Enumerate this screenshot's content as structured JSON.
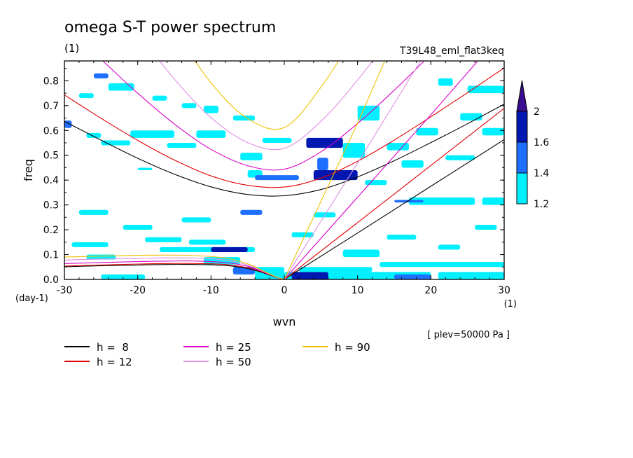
{
  "title": "omega S-T power spectrum",
  "subtitle": "(1)",
  "run_label": "T39L48_eml_flat3keq",
  "plev_label": "[ plev=50000 Pa ]",
  "chart_data": {
    "type": "heatmap",
    "xlabel": "wvn",
    "ylabel": "freq",
    "x_unit": "(1)",
    "y_unit": "(day-1)",
    "xlim": [
      -30,
      30
    ],
    "ylim": [
      0,
      0.88
    ],
    "x_ticks": [
      -30,
      -20,
      -10,
      0,
      10,
      20,
      30
    ],
    "x_tick_labels": [
      "-30",
      "-20",
      "-10",
      "0",
      "10",
      "20",
      "30"
    ],
    "y_ticks": [
      0,
      0.1,
      0.2,
      0.3,
      0.4,
      0.5,
      0.6,
      0.7,
      0.8
    ],
    "y_tick_labels": [
      "0.0",
      "0.1",
      "0.2",
      "0.3",
      "0.4",
      "0.5",
      "0.6",
      "0.7",
      "0.8"
    ],
    "colorbar": {
      "levels": [
        1.2,
        1.4,
        1.6,
        2
      ],
      "level_labels": [
        "1.2",
        "1.4",
        "1.6",
        "2"
      ],
      "colors": [
        "#00f0ff",
        "#1e6fff",
        "#0018b0",
        "#3a0c8e"
      ]
    },
    "shaded_regions": [
      {
        "x": [
          -30.0,
          -29.0
        ],
        "y": [
          0.61,
          0.64
        ],
        "level": 1
      },
      {
        "x": [
          -28.0,
          -26.0
        ],
        "y": [
          0.73,
          0.75
        ],
        "level": 0
      },
      {
        "x": [
          -27.0,
          -25.0
        ],
        "y": [
          0.57,
          0.59
        ],
        "level": 0
      },
      {
        "x": [
          -26.0,
          -24.0
        ],
        "y": [
          0.81,
          0.83
        ],
        "level": 1
      },
      {
        "x": [
          -25.0,
          -21.0
        ],
        "y": [
          0.54,
          0.56
        ],
        "level": 0
      },
      {
        "x": [
          -24.0,
          -20.5
        ],
        "y": [
          0.76,
          0.79
        ],
        "level": 0
      },
      {
        "x": [
          -21.0,
          -15.0
        ],
        "y": [
          0.57,
          0.6
        ],
        "level": 0
      },
      {
        "x": [
          -18.0,
          -16.0
        ],
        "y": [
          0.72,
          0.74
        ],
        "level": 0
      },
      {
        "x": [
          -20.0,
          -18.0
        ],
        "y": [
          0.44,
          0.45
        ],
        "level": 0
      },
      {
        "x": [
          -16.0,
          -12.0
        ],
        "y": [
          0.53,
          0.55
        ],
        "level": 0
      },
      {
        "x": [
          -14.0,
          -12.0
        ],
        "y": [
          0.69,
          0.71
        ],
        "level": 0
      },
      {
        "x": [
          -12.0,
          -8.0
        ],
        "y": [
          0.57,
          0.6
        ],
        "level": 0
      },
      {
        "x": [
          -11.0,
          -9.0
        ],
        "y": [
          0.67,
          0.7
        ],
        "level": 0
      },
      {
        "x": [
          -7.0,
          -4.0
        ],
        "y": [
          0.64,
          0.66
        ],
        "level": 0
      },
      {
        "x": [
          -6.0,
          -3.0
        ],
        "y": [
          0.48,
          0.51
        ],
        "level": 0
      },
      {
        "x": [
          -3.0,
          1.0
        ],
        "y": [
          0.55,
          0.57
        ],
        "level": 0
      },
      {
        "x": [
          -5.0,
          -3.0
        ],
        "y": [
          0.41,
          0.44
        ],
        "level": 0
      },
      {
        "x": [
          -4.0,
          2.0
        ],
        "y": [
          0.4,
          0.42
        ],
        "level": 1
      },
      {
        "x": [
          3.0,
          8.0
        ],
        "y": [
          0.53,
          0.57
        ],
        "level": 2
      },
      {
        "x": [
          4.0,
          10.0
        ],
        "y": [
          0.4,
          0.44
        ],
        "level": 2
      },
      {
        "x": [
          4.5,
          6.0
        ],
        "y": [
          0.44,
          0.49
        ],
        "level": 1
      },
      {
        "x": [
          8.0,
          11.0
        ],
        "y": [
          0.49,
          0.55
        ],
        "level": 0
      },
      {
        "x": [
          10.0,
          13.0
        ],
        "y": [
          0.64,
          0.7
        ],
        "level": 0
      },
      {
        "x": [
          11.0,
          14.0
        ],
        "y": [
          0.38,
          0.4
        ],
        "level": 0
      },
      {
        "x": [
          14.0,
          17.0
        ],
        "y": [
          0.52,
          0.55
        ],
        "level": 0
      },
      {
        "x": [
          16.0,
          19.0
        ],
        "y": [
          0.45,
          0.48
        ],
        "level": 0
      },
      {
        "x": [
          18.0,
          21.0
        ],
        "y": [
          0.58,
          0.61
        ],
        "level": 0
      },
      {
        "x": [
          21.0,
          23.0
        ],
        "y": [
          0.78,
          0.81
        ],
        "level": 0
      },
      {
        "x": [
          22.0,
          26.0
        ],
        "y": [
          0.48,
          0.5
        ],
        "level": 0
      },
      {
        "x": [
          24.0,
          27.0
        ],
        "y": [
          0.64,
          0.67
        ],
        "level": 0
      },
      {
        "x": [
          27.0,
          30.0
        ],
        "y": [
          0.58,
          0.61
        ],
        "level": 0
      },
      {
        "x": [
          25.0,
          30.0
        ],
        "y": [
          0.75,
          0.78
        ],
        "level": 0
      },
      {
        "x": [
          17.0,
          26.0
        ],
        "y": [
          0.3,
          0.33
        ],
        "level": 0
      },
      {
        "x": [
          15.0,
          19.0
        ],
        "y": [
          0.31,
          0.32
        ],
        "level": 1
      },
      {
        "x": [
          27.0,
          30.0
        ],
        "y": [
          0.3,
          0.33
        ],
        "level": 0
      },
      {
        "x": [
          -28.0,
          -24.0
        ],
        "y": [
          0.26,
          0.28
        ],
        "level": 0
      },
      {
        "x": [
          -22.0,
          -18.0
        ],
        "y": [
          0.2,
          0.22
        ],
        "level": 0
      },
      {
        "x": [
          -14.0,
          -10.0
        ],
        "y": [
          0.23,
          0.25
        ],
        "level": 0
      },
      {
        "x": [
          -6.0,
          -3.0
        ],
        "y": [
          0.26,
          0.28
        ],
        "level": 1
      },
      {
        "x": [
          1.0,
          4.0
        ],
        "y": [
          0.17,
          0.19
        ],
        "level": 0
      },
      {
        "x": [
          4.0,
          7.0
        ],
        "y": [
          0.25,
          0.27
        ],
        "level": 0
      },
      {
        "x": [
          -29.0,
          -24.0
        ],
        "y": [
          0.13,
          0.15
        ],
        "level": 0
      },
      {
        "x": [
          -19.0,
          -14.0
        ],
        "y": [
          0.15,
          0.17
        ],
        "level": 0
      },
      {
        "x": [
          -17.0,
          -4.0
        ],
        "y": [
          0.11,
          0.13
        ],
        "level": 0
      },
      {
        "x": [
          -10.0,
          -5.0
        ],
        "y": [
          0.11,
          0.13
        ],
        "level": 2
      },
      {
        "x": [
          -13.0,
          -8.0
        ],
        "y": [
          0.14,
          0.16
        ],
        "level": 0
      },
      {
        "x": [
          -27.0,
          -23.0
        ],
        "y": [
          0.08,
          0.1
        ],
        "level": 0
      },
      {
        "x": [
          -11.0,
          -6.0
        ],
        "y": [
          0.06,
          0.09
        ],
        "level": 0
      },
      {
        "x": [
          -7.0,
          -4.0
        ],
        "y": [
          0.02,
          0.05
        ],
        "level": 1
      },
      {
        "x": [
          -4.0,
          0.0
        ],
        "y": [
          0.0,
          0.05
        ],
        "level": 0
      },
      {
        "x": [
          -25.0,
          -19.0
        ],
        "y": [
          0.0,
          0.02
        ],
        "level": 0
      },
      {
        "x": [
          0.0,
          20.0
        ],
        "y": [
          0.0,
          0.03
        ],
        "level": 0
      },
      {
        "x": [
          1.0,
          6.0
        ],
        "y": [
          0.0,
          0.03
        ],
        "level": 2
      },
      {
        "x": [
          15.0,
          20.0
        ],
        "y": [
          0.0,
          0.02
        ],
        "level": 1
      },
      {
        "x": [
          2.0,
          12.0
        ],
        "y": [
          0.03,
          0.05
        ],
        "level": 0
      },
      {
        "x": [
          13.0,
          30.0
        ],
        "y": [
          0.05,
          0.07
        ],
        "level": 0
      },
      {
        "x": [
          21.0,
          30.0
        ],
        "y": [
          0.0,
          0.03
        ],
        "level": 0
      },
      {
        "x": [
          8.0,
          13.0
        ],
        "y": [
          0.09,
          0.12
        ],
        "level": 0
      },
      {
        "x": [
          14.0,
          18.0
        ],
        "y": [
          0.16,
          0.18
        ],
        "level": 0
      },
      {
        "x": [
          21.0,
          24.0
        ],
        "y": [
          0.12,
          0.14
        ],
        "level": 0
      },
      {
        "x": [
          26.0,
          29.0
        ],
        "y": [
          0.2,
          0.22
        ],
        "level": 0
      }
    ],
    "series": [
      {
        "name": "h =  8",
        "color": "#000000",
        "eig_pos": [
          [
            0,
            0.337
          ],
          [
            5,
            0.362
          ],
          [
            10,
            0.413
          ],
          [
            15,
            0.478
          ],
          [
            20,
            0.551
          ],
          [
            25,
            0.627
          ],
          [
            30,
            0.706
          ]
        ],
        "eig_neg": [
          [
            0,
            0.337
          ],
          [
            -5,
            0.342
          ],
          [
            -10,
            0.373
          ],
          [
            -15,
            0.424
          ],
          [
            -20,
            0.488
          ],
          [
            -25,
            0.561
          ],
          [
            -30,
            0.637
          ]
        ],
        "kelvin": [
          [
            0,
            0
          ],
          [
            10,
            0.187
          ],
          [
            20,
            0.375
          ],
          [
            30,
            0.563
          ]
        ],
        "rossby": [
          [
            -1,
            0.007
          ],
          [
            -3,
            0.028
          ],
          [
            -5,
            0.044
          ],
          [
            -8,
            0.056
          ],
          [
            -12,
            0.06
          ],
          [
            -16,
            0.06
          ],
          [
            -20,
            0.058
          ],
          [
            -25,
            0.055
          ],
          [
            -30,
            0.051
          ]
        ]
      },
      {
        "name": "h = 12",
        "color": "#e00000",
        "eig_pos": [
          [
            0,
            0.372
          ],
          [
            5,
            0.408
          ],
          [
            10,
            0.476
          ],
          [
            15,
            0.561
          ],
          [
            20,
            0.655
          ],
          [
            25,
            0.752
          ],
          [
            30,
            0.852
          ]
        ],
        "eig_neg": [
          [
            0,
            0.372
          ],
          [
            -5,
            0.379
          ],
          [
            -10,
            0.417
          ],
          [
            -15,
            0.481
          ],
          [
            -20,
            0.56
          ],
          [
            -25,
            0.649
          ],
          [
            -30,
            0.743
          ]
        ],
        "kelvin": [
          [
            0,
            0
          ],
          [
            10,
            0.229
          ],
          [
            20,
            0.459
          ],
          [
            30,
            0.689
          ]
        ],
        "rossby": [
          [
            -1,
            0.008
          ],
          [
            -3,
            0.03
          ],
          [
            -5,
            0.047
          ],
          [
            -8,
            0.06
          ],
          [
            -12,
            0.064
          ],
          [
            -16,
            0.064
          ],
          [
            -20,
            0.062
          ],
          [
            -25,
            0.058
          ],
          [
            -30,
            0.054
          ]
        ]
      },
      {
        "name": "h = 25",
        "color": "#d800c8",
        "eig_pos": [
          [
            0,
            0.444
          ],
          [
            5,
            0.514
          ],
          [
            10,
            0.628
          ],
          [
            15,
            0.762
          ],
          [
            20,
            0.907
          ],
          [
            25,
            1.06
          ]
        ],
        "eig_neg": [
          [
            0,
            0.444
          ],
          [
            -5,
            0.458
          ],
          [
            -10,
            0.524
          ],
          [
            -15,
            0.626
          ],
          [
            -20,
            0.75
          ],
          [
            -25,
            0.887
          ],
          [
            -30,
            1.03
          ]
        ],
        "kelvin": [
          [
            0,
            0
          ],
          [
            10,
            0.331
          ],
          [
            20,
            0.663
          ],
          [
            27,
            0.9
          ]
        ],
        "rossby": [
          [
            -1,
            0.008
          ],
          [
            -3,
            0.032
          ],
          [
            -5,
            0.053
          ],
          [
            -8,
            0.068
          ],
          [
            -12,
            0.074
          ],
          [
            -16,
            0.074
          ],
          [
            -20,
            0.072
          ],
          [
            -25,
            0.068
          ],
          [
            -30,
            0.064
          ]
        ]
      },
      {
        "name": "h = 50",
        "color": "#e090e0",
        "eig_pos": [
          [
            0,
            0.528
          ],
          [
            5,
            0.637
          ],
          [
            10,
            0.803
          ],
          [
            15,
            0.995
          ],
          [
            20,
            1.2
          ]
        ],
        "eig_neg": [
          [
            0,
            0.528
          ],
          [
            -5,
            0.551
          ],
          [
            -10,
            0.652
          ],
          [
            -15,
            0.807
          ],
          [
            -20,
            0.995
          ],
          [
            -25,
            1.2
          ]
        ],
        "kelvin": [
          [
            0,
            0
          ],
          [
            10,
            0.469
          ],
          [
            19,
            0.9
          ]
        ],
        "rossby": [
          [
            -1,
            0.008
          ],
          [
            -3,
            0.034
          ],
          [
            -5,
            0.058
          ],
          [
            -8,
            0.078
          ],
          [
            -12,
            0.086
          ],
          [
            -16,
            0.087
          ],
          [
            -20,
            0.085
          ],
          [
            -25,
            0.082
          ],
          [
            -30,
            0.078
          ]
        ]
      },
      {
        "name": "h = 90",
        "color": "#f0c000",
        "eig_pos": [
          [
            0,
            0.612
          ],
          [
            5,
            0.774
          ],
          [
            10,
            1.01
          ],
          [
            15,
            1.28
          ]
        ],
        "eig_neg": [
          [
            0,
            0.612
          ],
          [
            -5,
            0.648
          ],
          [
            -10,
            0.792
          ],
          [
            -15,
            1.01
          ],
          [
            -20,
            1.27
          ]
        ],
        "kelvin": [
          [
            0,
            0
          ],
          [
            10,
            0.629
          ],
          [
            14,
            0.9
          ]
        ],
        "rossby": [
          [
            -1,
            0.009
          ],
          [
            -3,
            0.036
          ],
          [
            -5,
            0.063
          ],
          [
            -8,
            0.086
          ],
          [
            -12,
            0.096
          ],
          [
            -16,
            0.098
          ],
          [
            -20,
            0.097
          ],
          [
            -25,
            0.094
          ],
          [
            -30,
            0.09
          ]
        ]
      }
    ],
    "legend": [
      {
        "label": "h =  8",
        "color": "#000000"
      },
      {
        "label": "h = 12",
        "color": "#e00000"
      },
      {
        "label": "h = 25",
        "color": "#d800c8"
      },
      {
        "label": "h = 50",
        "color": "#e090e0"
      },
      {
        "label": "h = 90",
        "color": "#f0c000"
      }
    ]
  }
}
